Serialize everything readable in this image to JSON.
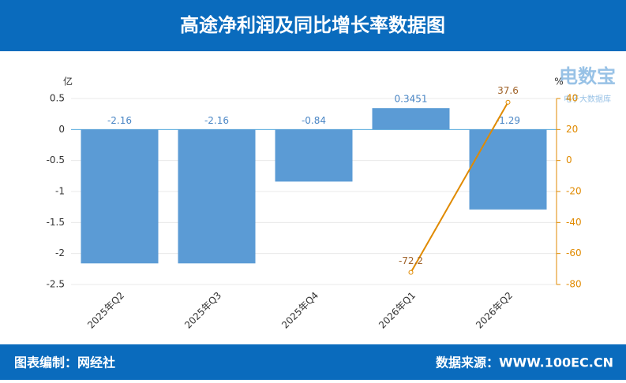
{
  "chart_data": {
    "type": "bar",
    "title": "高途净利润及同比增长率数据图",
    "y_label": "亿",
    "y2_label": "%",
    "categories": [
      "2025年Q2",
      "2025年Q3",
      "2025年Q4",
      "2026年Q1",
      "2026年Q2"
    ],
    "series": [
      {
        "type": "bar",
        "color": "#5b9bd5",
        "values": [
          -2.16,
          -2.16,
          -0.84,
          0.3451,
          -1.29
        ]
      },
      {
        "type": "line",
        "axis": "y2",
        "color": "#e08a00",
        "values": [
          null,
          null,
          null,
          -72.2,
          37.6
        ]
      }
    ],
    "ylim": [
      -2.5,
      0.5
    ],
    "yticks": [
      0.5,
      0,
      -0.5,
      -1,
      -1.5,
      -2,
      -2.5
    ],
    "y2lim": [
      -80,
      40
    ],
    "y2ticks": [
      40,
      20,
      0,
      -20,
      -40,
      -60,
      -80
    ],
    "grid": true
  },
  "watermark": {
    "brand": "电数宝",
    "sub": "电子大数据库"
  },
  "footer": {
    "left": "图表编制：网经社",
    "right": "数据来源：WWW.100EC.CN"
  }
}
